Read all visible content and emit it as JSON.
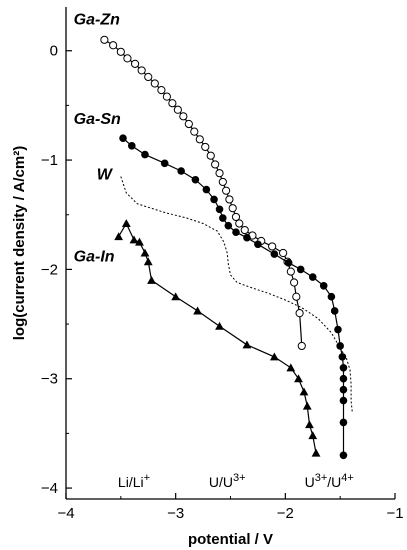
{
  "chart_data": {
    "type": "line",
    "xlabel": "potential / V",
    "ylabel": "log(current density / A/cm²)",
    "xlim": [
      -4,
      -1
    ],
    "ylim": [
      -4.1,
      0.4
    ],
    "x_ticks": [
      "−4",
      "−3",
      "−2",
      "−1"
    ],
    "y_ticks": [
      "0",
      "−1",
      "−2",
      "−3",
      "−4"
    ],
    "grid": false,
    "reference_labels": [
      {
        "name": "Li/Li",
        "sup": "+",
        "x": -3.38
      },
      {
        "name": "U/U",
        "sup": "3+",
        "x": -2.53
      },
      {
        "name": "U",
        "sup": "3+",
        "name2": "/U",
        "sup2": "4+",
        "x": -1.6
      }
    ],
    "series": [
      {
        "name": "Ga-Zn",
        "marker": "open-circle",
        "points": [
          [
            -3.65,
            0.1
          ],
          [
            -3.57,
            0.05
          ],
          [
            -3.5,
            -0.01
          ],
          [
            -3.44,
            -0.07
          ],
          [
            -3.37,
            -0.12
          ],
          [
            -3.31,
            -0.18
          ],
          [
            -3.25,
            -0.24
          ],
          [
            -3.19,
            -0.3
          ],
          [
            -3.13,
            -0.36
          ],
          [
            -3.08,
            -0.42
          ],
          [
            -3.03,
            -0.48
          ],
          [
            -2.98,
            -0.54
          ],
          [
            -2.93,
            -0.6
          ],
          [
            -2.88,
            -0.67
          ],
          [
            -2.83,
            -0.74
          ],
          [
            -2.78,
            -0.81
          ],
          [
            -2.73,
            -0.88
          ],
          [
            -2.68,
            -0.96
          ],
          [
            -2.64,
            -1.04
          ],
          [
            -2.6,
            -1.12
          ],
          [
            -2.57,
            -1.2
          ],
          [
            -2.54,
            -1.28
          ],
          [
            -2.51,
            -1.36
          ],
          [
            -2.48,
            -1.44
          ],
          [
            -2.45,
            -1.52
          ],
          [
            -2.42,
            -1.58
          ],
          [
            -2.37,
            -1.64
          ],
          [
            -2.3,
            -1.69
          ],
          [
            -2.22,
            -1.74
          ],
          [
            -2.12,
            -1.79
          ],
          [
            -2.02,
            -1.85
          ],
          [
            -1.98,
            -1.93
          ],
          [
            -1.95,
            -2.02
          ],
          [
            -1.92,
            -2.12
          ],
          [
            -1.9,
            -2.25
          ],
          [
            -1.87,
            -2.4
          ],
          [
            -1.85,
            -2.7
          ]
        ]
      },
      {
        "name": "Ga-Sn",
        "marker": "filled-circle",
        "points": [
          [
            -3.48,
            -0.8
          ],
          [
            -3.4,
            -0.87
          ],
          [
            -3.28,
            -0.95
          ],
          [
            -3.1,
            -1.03
          ],
          [
            -2.95,
            -1.1
          ],
          [
            -2.82,
            -1.18
          ],
          [
            -2.72,
            -1.27
          ],
          [
            -2.65,
            -1.36
          ],
          [
            -2.6,
            -1.45
          ],
          [
            -2.57,
            -1.53
          ],
          [
            -2.52,
            -1.6
          ],
          [
            -2.45,
            -1.66
          ],
          [
            -2.35,
            -1.71
          ],
          [
            -2.25,
            -1.77
          ],
          [
            -2.1,
            -1.86
          ],
          [
            -1.97,
            -1.94
          ],
          [
            -1.86,
            -2.0
          ],
          [
            -1.75,
            -2.07
          ],
          [
            -1.65,
            -2.15
          ],
          [
            -1.58,
            -2.25
          ],
          [
            -1.55,
            -2.38
          ],
          [
            -1.52,
            -2.55
          ],
          [
            -1.5,
            -2.7
          ],
          [
            -1.48,
            -2.8
          ],
          [
            -1.47,
            -2.9
          ],
          [
            -1.47,
            -3.0
          ],
          [
            -1.47,
            -3.1
          ],
          [
            -1.47,
            -3.2
          ],
          [
            -1.47,
            -3.4
          ],
          [
            -1.47,
            -3.7
          ]
        ]
      },
      {
        "name": "W",
        "marker": "none",
        "line": "dotted",
        "points": [
          [
            -3.5,
            -1.15
          ],
          [
            -3.45,
            -1.3
          ],
          [
            -3.35,
            -1.4
          ],
          [
            -3.1,
            -1.48
          ],
          [
            -2.9,
            -1.53
          ],
          [
            -2.75,
            -1.58
          ],
          [
            -2.62,
            -1.65
          ],
          [
            -2.56,
            -1.75
          ],
          [
            -2.53,
            -1.85
          ],
          [
            -2.52,
            -1.95
          ],
          [
            -2.5,
            -2.05
          ],
          [
            -2.44,
            -2.12
          ],
          [
            -2.3,
            -2.17
          ],
          [
            -2.15,
            -2.22
          ],
          [
            -2.0,
            -2.28
          ],
          [
            -1.85,
            -2.35
          ],
          [
            -1.7,
            -2.45
          ],
          [
            -1.58,
            -2.58
          ],
          [
            -1.5,
            -2.72
          ],
          [
            -1.44,
            -2.82
          ],
          [
            -1.41,
            -2.92
          ],
          [
            -1.4,
            -3.05
          ],
          [
            -1.4,
            -3.2
          ],
          [
            -1.39,
            -3.3
          ]
        ]
      },
      {
        "name": "Ga-In",
        "marker": "filled-triangle",
        "points": [
          [
            -3.52,
            -1.7
          ],
          [
            -3.45,
            -1.58
          ],
          [
            -3.38,
            -1.73
          ],
          [
            -3.33,
            -1.75
          ],
          [
            -3.28,
            -1.85
          ],
          [
            -3.25,
            -1.93
          ],
          [
            -3.22,
            -2.1
          ],
          [
            -3.0,
            -2.25
          ],
          [
            -2.8,
            -2.38
          ],
          [
            -2.6,
            -2.52
          ],
          [
            -2.35,
            -2.69
          ],
          [
            -2.1,
            -2.8
          ],
          [
            -1.95,
            -2.9
          ],
          [
            -1.88,
            -3.0
          ],
          [
            -1.83,
            -3.12
          ],
          [
            -1.8,
            -3.25
          ],
          [
            -1.78,
            -3.42
          ],
          [
            -1.75,
            -3.52
          ],
          [
            -1.72,
            -3.68
          ]
        ]
      }
    ],
    "series_labels": [
      {
        "name": "Ga-Zn",
        "anchor": [
          -3.93,
          0.24
        ]
      },
      {
        "name": "Ga-Sn",
        "anchor": [
          -3.93,
          -0.67
        ]
      },
      {
        "name": "W",
        "anchor": [
          -3.72,
          -1.18
        ]
      },
      {
        "name": "Ga-In",
        "anchor": [
          -3.93,
          -1.93
        ]
      }
    ]
  }
}
